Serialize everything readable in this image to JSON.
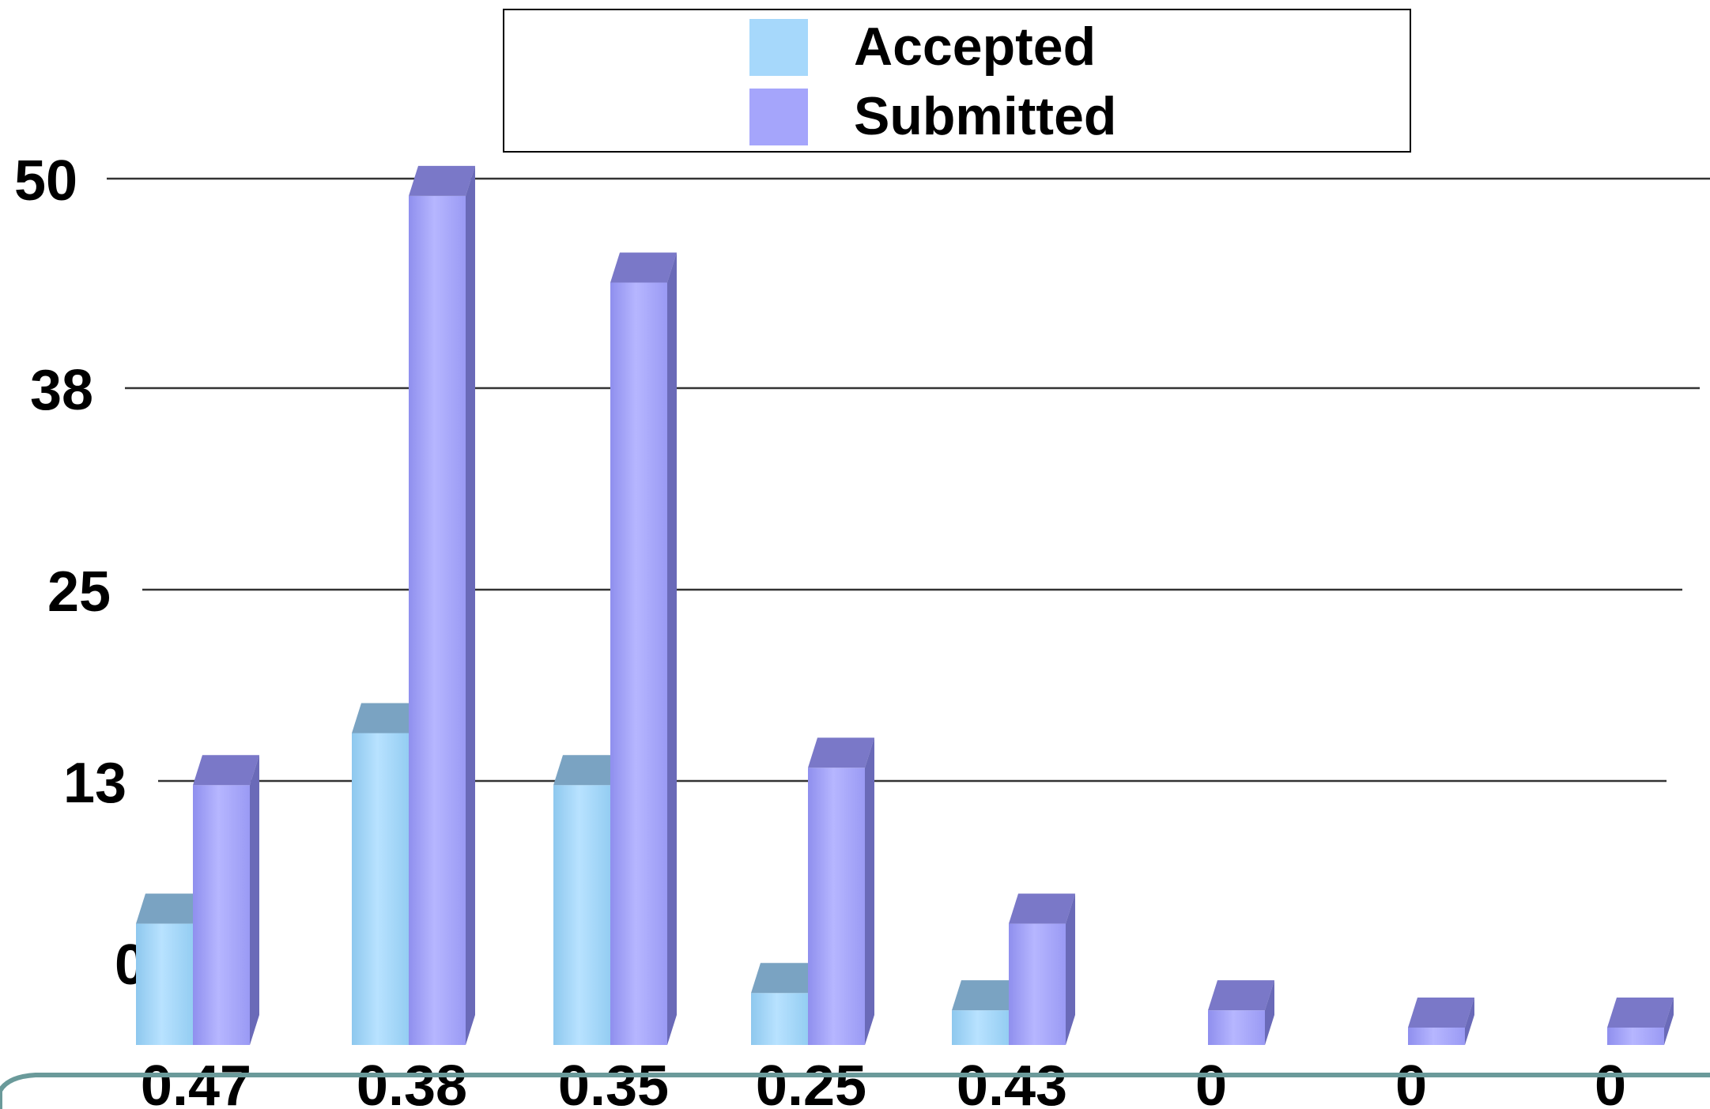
{
  "chart_data": {
    "type": "bar",
    "categories": [
      "0.47",
      "0.38",
      "0.35",
      "0.25",
      "0.43",
      "0",
      "0",
      "0"
    ],
    "series": [
      {
        "name": "Accepted",
        "values": [
          7,
          18,
          15,
          3,
          2,
          0,
          0,
          0
        ],
        "color": "#a6d8fb"
      },
      {
        "name": "Submitted",
        "values": [
          15,
          49,
          44,
          16,
          7,
          2,
          0,
          0
        ],
        "color": "#a5a5fb"
      }
    ],
    "y_ticks": [
      "0",
      "13",
      "25",
      "38",
      "50"
    ],
    "ylim": [
      0,
      50
    ],
    "grid": true,
    "legend": "top-center",
    "title": "",
    "xlabel": "",
    "ylabel": ""
  },
  "colors": {
    "accepted_side": "#6f9ab8",
    "submitted_side": "#6a6ab8",
    "submitted_top": "#7a78c8",
    "accepted_top": "#7aa3c2",
    "frame": "#6a9a9a"
  }
}
